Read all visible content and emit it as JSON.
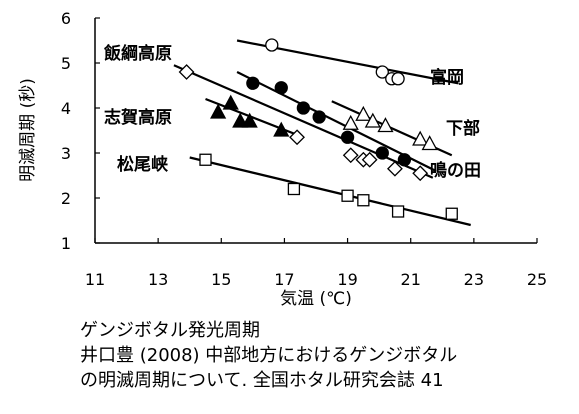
{
  "chart_data": {
    "type": "scatter",
    "title": "",
    "xlabel": "気温 (℃)",
    "ylabel": "明滅周期 (秒)",
    "xlim": [
      11,
      25
    ],
    "ylim": [
      1,
      6
    ],
    "xticks": [
      "11",
      "13",
      "15",
      "17",
      "19",
      "21",
      "23",
      "25"
    ],
    "yticks": [
      "1",
      "2",
      "3",
      "4",
      "5",
      "6"
    ],
    "grid": false,
    "legend": "none",
    "series": [
      {
        "name": "富岡",
        "marker": "open-circle",
        "points": [
          [
            16.6,
            5.4
          ],
          [
            20.1,
            4.8
          ],
          [
            20.4,
            4.65
          ],
          [
            20.6,
            4.65
          ]
        ],
        "trend": [
          [
            15.5,
            5.5
          ],
          [
            22.5,
            4.55
          ]
        ]
      },
      {
        "name": "下部",
        "marker": "open-triangle",
        "points": [
          [
            19.1,
            3.65
          ],
          [
            19.5,
            3.85
          ],
          [
            19.8,
            3.7
          ],
          [
            20.2,
            3.6
          ],
          [
            21.3,
            3.3
          ],
          [
            21.6,
            3.2
          ]
        ],
        "trend": [
          [
            18.5,
            4.15
          ],
          [
            22.3,
            2.95
          ]
        ]
      },
      {
        "name": "鳴の田",
        "marker": "filled-circle",
        "points": [
          [
            16.0,
            4.55
          ],
          [
            16.9,
            4.45
          ],
          [
            17.6,
            4.0
          ],
          [
            18.1,
            3.8
          ],
          [
            19.0,
            3.35
          ],
          [
            20.1,
            3.0
          ],
          [
            20.8,
            2.85
          ]
        ],
        "trend": [
          [
            15.5,
            4.8
          ],
          [
            21.8,
            2.6
          ]
        ]
      },
      {
        "name": "飯綱高原",
        "marker": "open-diamond",
        "points": [
          [
            13.9,
            4.8
          ],
          [
            17.4,
            3.35
          ],
          [
            19.1,
            2.95
          ],
          [
            19.5,
            2.85
          ],
          [
            19.7,
            2.85
          ],
          [
            20.5,
            2.65
          ],
          [
            21.3,
            2.55
          ]
        ],
        "trend": [
          [
            13.5,
            4.95
          ],
          [
            21.7,
            2.45
          ]
        ]
      },
      {
        "name": "志賀高原",
        "marker": "filled-triangle",
        "points": [
          [
            14.9,
            3.9
          ],
          [
            15.3,
            4.1
          ],
          [
            15.6,
            3.7
          ],
          [
            15.9,
            3.7
          ],
          [
            16.9,
            3.5
          ]
        ],
        "trend": [
          [
            14.5,
            4.2
          ],
          [
            17.6,
            3.35
          ]
        ]
      },
      {
        "name": "松尾峡",
        "marker": "open-square",
        "points": [
          [
            14.5,
            2.85
          ],
          [
            17.3,
            2.2
          ],
          [
            19.0,
            2.05
          ],
          [
            19.5,
            1.95
          ],
          [
            20.6,
            1.7
          ],
          [
            22.3,
            1.65
          ]
        ],
        "trend": [
          [
            14.0,
            2.9
          ],
          [
            22.9,
            1.4
          ]
        ]
      }
    ]
  },
  "caption": {
    "line1": "ゲンジボタル発光周期",
    "line2": "井口豊 (2008) 中部地方におけるゲンジボタル",
    "line3": "の明滅周期について. 全国ホタル研究会誌 41"
  }
}
